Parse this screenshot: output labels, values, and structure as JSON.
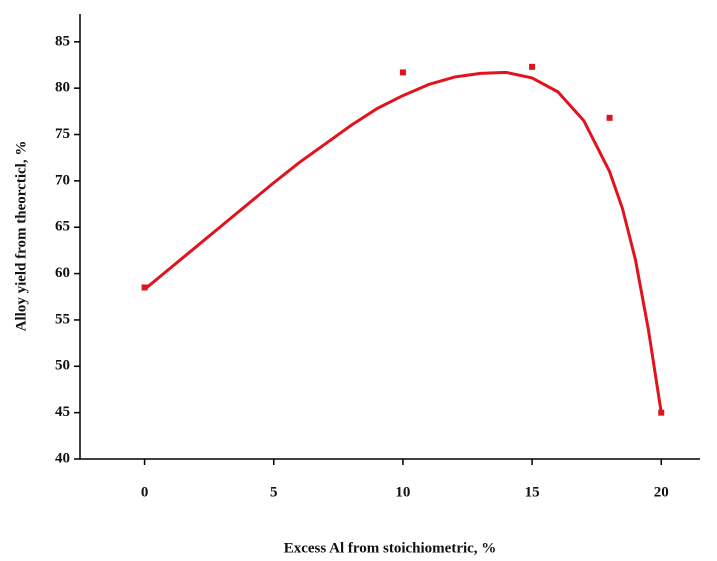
{
  "chart_data": {
    "type": "scatter",
    "x_label": "Excess Al from stoichiometric, %",
    "y_label": "Alloy yield from theorcticl, %",
    "xlim": [
      -2.5,
      21.5
    ],
    "ylim": [
      40,
      88
    ],
    "xticks": [
      0,
      5,
      10,
      15,
      20
    ],
    "yticks": [
      40,
      45,
      50,
      55,
      60,
      65,
      70,
      75,
      80,
      85
    ],
    "series": [
      {
        "style": "markers",
        "color": "#e0141e",
        "x": [
          0,
          10,
          15,
          18,
          20
        ],
        "y": [
          58.5,
          81.7,
          82.3,
          76.8,
          45
        ]
      },
      {
        "style": "line",
        "color": "#e0141e",
        "x": [
          0,
          1,
          2,
          3,
          4,
          5,
          6,
          7,
          8,
          9,
          10,
          11,
          12,
          13,
          14,
          15,
          16,
          17,
          18,
          18.5,
          19,
          19.5,
          20
        ],
        "y": [
          58.3,
          60.6,
          62.9,
          65.2,
          67.5,
          69.8,
          72,
          74,
          76,
          77.8,
          79.2,
          80.4,
          81.2,
          81.6,
          81.7,
          81.1,
          79.6,
          76.5,
          71,
          67,
          61.5,
          54,
          45
        ]
      }
    ]
  }
}
